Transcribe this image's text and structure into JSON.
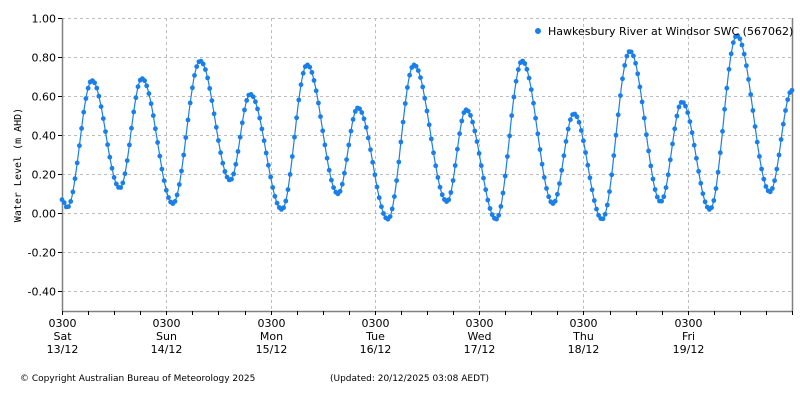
{
  "footer": {
    "copyright": "© Copyright Australian Bureau of Meteorology 2025",
    "updated": "(Updated: 20/12/2025 03:08 AEDT)"
  },
  "colors": {
    "series": "#1a7fe8",
    "grid": "#bdbdbd",
    "axis": "#808080"
  },
  "chart_data": {
    "type": "line",
    "title": "",
    "xlabel": "",
    "ylabel": "Water Level (m AHD)",
    "ylim": [
      -0.5,
      1.0
    ],
    "yticks": [
      1.0,
      0.8,
      0.6,
      0.4,
      0.2,
      0.0,
      -0.2,
      -0.4
    ],
    "ytick_labels": [
      "1.00",
      "0.80",
      "0.60",
      "0.40",
      "0.20",
      "0.00",
      "-0.20",
      "-0.40"
    ],
    "x_range_hours": [
      0,
      168
    ],
    "x_start": "13/12 03:00",
    "x_end": "20/12 03:00",
    "xticks": [
      {
        "hour": 0,
        "time": "0300",
        "day": "Sat",
        "date": "13/12"
      },
      {
        "hour": 24,
        "time": "0300",
        "day": "Sun",
        "date": "14/12"
      },
      {
        "hour": 48,
        "time": "0300",
        "day": "Mon",
        "date": "15/12"
      },
      {
        "hour": 72,
        "time": "0300",
        "day": "Tue",
        "date": "16/12"
      },
      {
        "hour": 96,
        "time": "0300",
        "day": "Wed",
        "date": "17/12"
      },
      {
        "hour": 120,
        "time": "0300",
        "day": "Thu",
        "date": "18/12"
      },
      {
        "hour": 144,
        "time": "0300",
        "day": "Fri",
        "date": "19/12"
      }
    ],
    "minor_tick_interval_hours": 6,
    "grid": true,
    "legend_position": "top-right",
    "series": [
      {
        "name": "Hawkesbury River at Windsor SWC (567062)",
        "marker": "circle",
        "extrema_hours": [
          0,
          1.2,
          6.9,
          13.3,
          18.4,
          25.5,
          31.8,
          38.7,
          43.3,
          50.6,
          56.4,
          63.5,
          68.1,
          75.0,
          81.0,
          88.6,
          93.0,
          99.9,
          105.9,
          113.0,
          117.8,
          124.3,
          130.7,
          137.8,
          142.7,
          149.1,
          155.3,
          162.9,
          168.0
        ],
        "extrema_values": [
          0.07,
          0.03,
          0.68,
          0.13,
          0.69,
          0.05,
          0.78,
          0.17,
          0.61,
          0.02,
          0.76,
          0.1,
          0.54,
          -0.03,
          0.76,
          0.06,
          0.53,
          -0.03,
          0.78,
          0.05,
          0.51,
          -0.03,
          0.83,
          0.06,
          0.57,
          0.02,
          0.91,
          0.11,
          0.63
        ],
        "sample_interval_hours": 0.5
      }
    ]
  }
}
